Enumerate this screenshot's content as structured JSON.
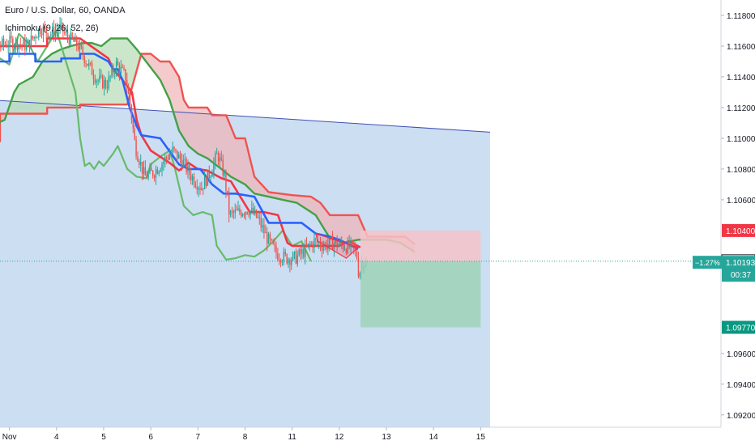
{
  "chart_data": {
    "type": "candlestick",
    "title": "Euro / U.S. Dollar, 60, OANDA",
    "indicator": "Ichimoku (9, 26, 52, 26)",
    "ylim": [
      1.0912,
      1.119
    ],
    "xlim": [
      -0.2,
      15.1
    ],
    "y_ticks": [
      "1.11800",
      "1.11600",
      "1.11400",
      "1.11200",
      "1.11000",
      "1.10800",
      "1.10600",
      "1.09600",
      "1.09400",
      "1.09200"
    ],
    "x_ticks": [
      {
        "x": 0,
        "label": "Nov"
      },
      {
        "x": 1,
        "label": "4"
      },
      {
        "x": 2,
        "label": "5"
      },
      {
        "x": 3,
        "label": "6"
      },
      {
        "x": 4,
        "label": "7"
      },
      {
        "x": 5,
        "label": "8"
      },
      {
        "x": 6,
        "label": "11"
      },
      {
        "x": 7,
        "label": "12"
      },
      {
        "x": 8,
        "label": "13"
      },
      {
        "x": 9,
        "label": "14"
      },
      {
        "x": 10,
        "label": "15"
      }
    ],
    "price_labels": {
      "target": {
        "value": 1.104,
        "text": "1.10400",
        "color": "#f23645"
      },
      "entry": {
        "value": 1.102,
        "text": "1.10200",
        "color": "#131722"
      },
      "stop": {
        "value": 1.0977,
        "text": "1.09770",
        "color": "#089981"
      },
      "current": {
        "value": 1.10193,
        "text": "1.10193",
        "change": "−1.27%",
        "countdown": "00:37",
        "color": "#26a69a"
      }
    },
    "trendline": {
      "x": [
        -0.9,
        10.2
      ],
      "y": [
        1.1126,
        1.1104
      ],
      "color": "#3f51b5"
    },
    "tenkan_sen": {
      "color": "#2962ff",
      "x": [
        -0.8,
        -0.35,
        -0.35,
        0.0,
        0.0,
        0.55,
        0.55,
        0.9,
        1.1,
        1.1,
        1.5,
        1.5,
        1.8,
        2.1,
        2.2,
        2.3,
        2.4,
        2.55,
        2.7,
        2.8,
        3.2,
        3.6,
        3.8,
        4.05,
        4.3,
        4.55,
        4.8,
        5.2,
        5.5,
        5.8,
        6.2,
        6.5,
        6.8,
        7.0,
        7.2,
        7.4
      ],
      "y": [
        1.1135,
        1.1135,
        1.115,
        1.115,
        1.1155,
        1.1155,
        1.115,
        1.115,
        1.115,
        1.1152,
        1.1152,
        1.1155,
        1.1155,
        1.115,
        1.1145,
        1.1145,
        1.1138,
        1.112,
        1.1108,
        1.1102,
        1.11,
        1.1083,
        1.108,
        1.108,
        1.107,
        1.1064,
        1.1064,
        1.1062,
        1.1045,
        1.1045,
        1.1045,
        1.1038,
        1.1036,
        1.1034,
        1.1031,
        1.1028
      ]
    },
    "kijun_sen": {
      "color": "#f23645",
      "x": [
        -0.8,
        -0.3,
        -0.3,
        0.8,
        0.8,
        1.5,
        2.1,
        2.2,
        2.4,
        2.6,
        2.7,
        2.8,
        3.0,
        3.4,
        3.6,
        3.8,
        4.0,
        4.2,
        4.5,
        4.7,
        5.1,
        5.4,
        5.7,
        5.9,
        6.0,
        6.4,
        6.7,
        7.0,
        7.2,
        7.45
      ],
      "y": [
        1.114,
        1.114,
        1.116,
        1.116,
        1.1165,
        1.1165,
        1.1152,
        1.1145,
        1.1138,
        1.113,
        1.1112,
        1.1102,
        1.1092,
        1.1084,
        1.1079,
        1.1084,
        1.108,
        1.1079,
        1.1074,
        1.1072,
        1.1052,
        1.1052,
        1.105,
        1.1032,
        1.103,
        1.103,
        1.103,
        1.103,
        1.1033,
        1.1029
      ]
    },
    "chikou_span": {
      "color": "#66bb6a",
      "x": [
        -0.8,
        -0.6,
        -0.4,
        -0.2,
        0.0,
        0.2,
        0.4,
        0.6,
        0.8,
        1.0,
        1.2,
        1.4,
        1.5,
        1.6,
        1.7,
        1.8,
        1.9,
        2.0,
        2.2,
        2.3,
        2.5,
        2.7,
        2.9,
        3.0,
        3.2,
        3.4,
        3.5,
        3.7,
        3.9,
        4.1,
        4.3,
        4.4,
        4.6,
        4.8,
        5.0,
        5.2,
        5.4,
        5.6,
        5.8,
        6.0,
        6.2,
        6.4
      ],
      "y": [
        1.1157,
        1.116,
        1.114,
        1.1152,
        1.1148,
        1.1168,
        1.1162,
        1.115,
        1.116,
        1.117,
        1.115,
        1.113,
        1.11,
        1.1082,
        1.1084,
        1.108,
        1.1085,
        1.1082,
        1.109,
        1.1095,
        1.108,
        1.1075,
        1.1074,
        1.1083,
        1.1088,
        1.1092,
        1.1082,
        1.1056,
        1.105,
        1.1052,
        1.105,
        1.103,
        1.1021,
        1.1022,
        1.1024,
        1.1023,
        1.1027,
        1.1033,
        1.104,
        1.103,
        1.1033,
        1.102
      ]
    },
    "senkou_a": {
      "color": "#43a047",
      "x": [
        -0.8,
        -0.4,
        -0.4,
        -0.1,
        0.1,
        0.2,
        0.5,
        0.7,
        0.9,
        1.1,
        1.3,
        1.55,
        1.75,
        1.95,
        2.15,
        2.3,
        2.5,
        2.7,
        2.9,
        3.2,
        3.4,
        3.6,
        3.8,
        4.0,
        4.2,
        4.5,
        4.7,
        5.0,
        5.2,
        5.5,
        5.8,
        6.1,
        6.5,
        6.8,
        7.1,
        7.4,
        7.7,
        8.0,
        8.3,
        8.6
      ],
      "y": [
        1.11,
        1.11,
        1.1108,
        1.1112,
        1.113,
        1.1135,
        1.114,
        1.115,
        1.1155,
        1.1158,
        1.116,
        1.1162,
        1.1162,
        1.116,
        1.1165,
        1.1165,
        1.1165,
        1.1158,
        1.115,
        1.1138,
        1.1125,
        1.1105,
        1.1095,
        1.109,
        1.1087,
        1.108,
        1.1075,
        1.107,
        1.1064,
        1.1062,
        1.106,
        1.1058,
        1.105,
        1.1035,
        1.1032,
        1.1034,
        1.1034,
        1.1034,
        1.1032,
        1.1026
      ]
    },
    "senkou_b": {
      "color": "#ef5350",
      "x": [
        -0.8,
        -0.2,
        -0.2,
        0.8,
        0.8,
        1.5,
        1.5,
        2.5,
        2.8,
        3.0,
        3.2,
        3.4,
        3.6,
        3.7,
        3.8,
        4.0,
        4.2,
        4.3,
        4.6,
        4.8,
        5.0,
        5.2,
        5.5,
        6.0,
        6.4,
        6.6,
        6.8,
        7.1,
        7.4,
        7.6,
        8.0,
        8.4,
        8.6
      ],
      "y": [
        1.1098,
        1.1098,
        1.1116,
        1.1116,
        1.112,
        1.112,
        1.1122,
        1.1122,
        1.1155,
        1.1155,
        1.115,
        1.115,
        1.114,
        1.1125,
        1.112,
        1.112,
        1.112,
        1.1115,
        1.1115,
        1.11,
        1.11,
        1.1075,
        1.1065,
        1.1063,
        1.1062,
        1.1058,
        1.105,
        1.105,
        1.105,
        1.1036,
        1.1036,
        1.1036,
        1.1031
      ]
    },
    "candles": {
      "x_start": -0.8,
      "x_end": 7.6,
      "anchors": [
        {
          "x": -0.8,
          "y": 1.117
        },
        {
          "x": -0.5,
          "y": 1.115
        },
        {
          "x": -0.2,
          "y": 1.116
        },
        {
          "x": 0.1,
          "y": 1.1163
        },
        {
          "x": 0.4,
          "y": 1.116
        },
        {
          "x": 0.7,
          "y": 1.1172
        },
        {
          "x": 0.9,
          "y": 1.1168
        },
        {
          "x": 1.1,
          "y": 1.1172
        },
        {
          "x": 1.3,
          "y": 1.1165
        },
        {
          "x": 1.5,
          "y": 1.116
        },
        {
          "x": 1.7,
          "y": 1.1148
        },
        {
          "x": 1.9,
          "y": 1.1138
        },
        {
          "x": 2.1,
          "y": 1.1135
        },
        {
          "x": 2.3,
          "y": 1.1148
        },
        {
          "x": 2.5,
          "y": 1.114
        },
        {
          "x": 2.6,
          "y": 1.112
        },
        {
          "x": 2.7,
          "y": 1.1095
        },
        {
          "x": 2.9,
          "y": 1.1075
        },
        {
          "x": 3.1,
          "y": 1.1078
        },
        {
          "x": 3.3,
          "y": 1.1085
        },
        {
          "x": 3.5,
          "y": 1.1092
        },
        {
          "x": 3.7,
          "y": 1.1085
        },
        {
          "x": 3.9,
          "y": 1.1075
        },
        {
          "x": 4.1,
          "y": 1.1068
        },
        {
          "x": 4.3,
          "y": 1.1078
        },
        {
          "x": 4.45,
          "y": 1.109
        },
        {
          "x": 4.6,
          "y": 1.1075
        },
        {
          "x": 4.7,
          "y": 1.105
        },
        {
          "x": 4.9,
          "y": 1.1052
        },
        {
          "x": 5.1,
          "y": 1.1054
        },
        {
          "x": 5.3,
          "y": 1.1048
        },
        {
          "x": 5.5,
          "y": 1.1035
        },
        {
          "x": 5.7,
          "y": 1.1025
        },
        {
          "x": 5.9,
          "y": 1.1022
        },
        {
          "x": 6.1,
          "y": 1.1022
        },
        {
          "x": 6.3,
          "y": 1.1027
        },
        {
          "x": 6.5,
          "y": 1.1033
        },
        {
          "x": 6.7,
          "y": 1.103
        },
        {
          "x": 6.9,
          "y": 1.1032
        },
        {
          "x": 7.1,
          "y": 1.103
        },
        {
          "x": 7.3,
          "y": 1.1029
        },
        {
          "x": 7.4,
          "y": 1.1025
        },
        {
          "x": 7.45,
          "y": 1.101
        },
        {
          "x": 7.5,
          "y": 1.1019
        }
      ]
    },
    "position_tool": {
      "x_start": 7.45,
      "x_end": 10.0,
      "entry": 1.102,
      "target": 1.104,
      "stop": 1.0977
    },
    "wedge": {
      "x": [
        6.5,
        7.4,
        7.15,
        6.55
      ],
      "y": [
        1.1038,
        1.1029,
        1.1022,
        1.1033
      ]
    },
    "colors": {
      "background": "#ffffff",
      "short_zone": "#bbd3ee",
      "kumo_bear": "#f0b4b8",
      "kumo_bull": "#b7dcb7",
      "loss_zone": "#f5c3c8",
      "profit_zone": "#9ed3b8",
      "up_candle": "#26a69a",
      "down_candle": "#ef5350"
    }
  }
}
